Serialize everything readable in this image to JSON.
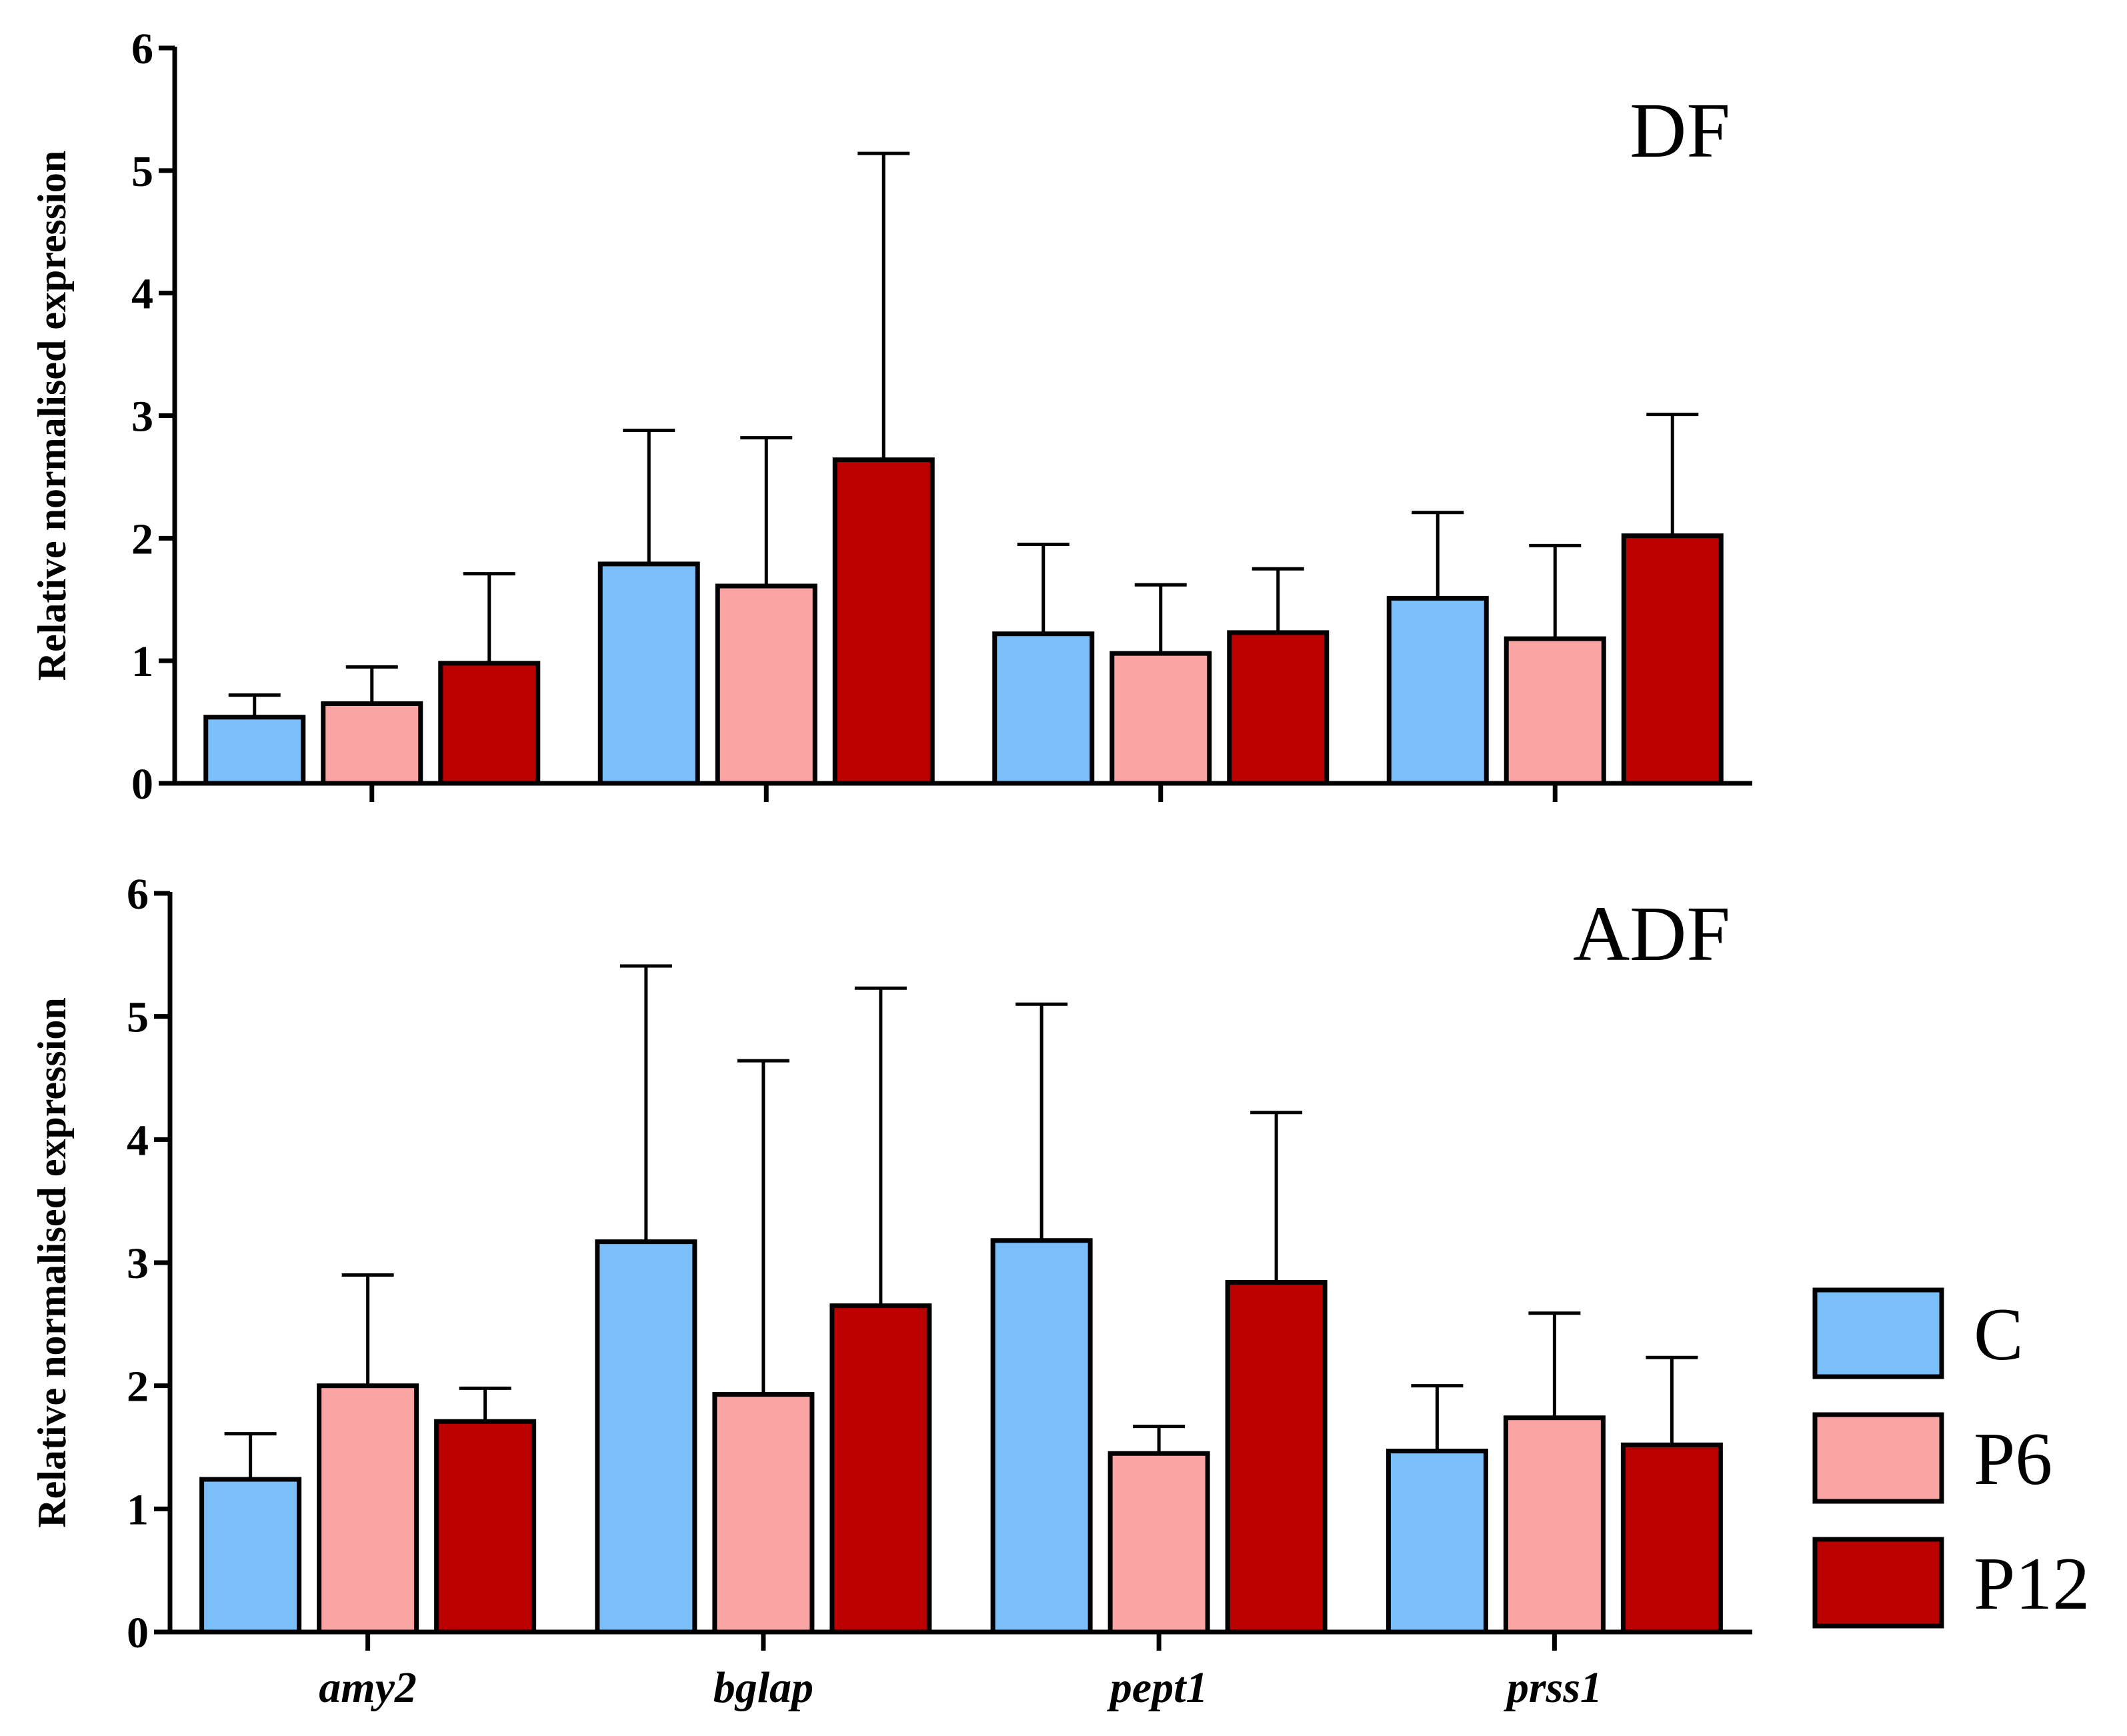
{
  "chart_data": [
    {
      "type": "bar",
      "title": "DF",
      "ylabel": "Relative normalised expression",
      "ylim": [
        0,
        6
      ],
      "yticks": [
        0,
        1,
        2,
        3,
        4,
        5,
        6
      ],
      "categories": [
        "amy2",
        "bglap",
        "pept1",
        "prss1"
      ],
      "show_category_labels": false,
      "series": [
        {
          "name": "C",
          "color": "#7abffa",
          "values": [
            0.54,
            1.79,
            1.22,
            1.51
          ],
          "errors": [
            0.18,
            1.09,
            0.73,
            0.7
          ]
        },
        {
          "name": "P6",
          "color": "#fba4a4",
          "values": [
            0.65,
            1.61,
            1.06,
            1.18
          ],
          "errors": [
            0.3,
            1.21,
            0.56,
            0.76
          ]
        },
        {
          "name": "P12",
          "color": "#bb0000",
          "values": [
            0.98,
            2.64,
            1.23,
            2.02
          ],
          "errors": [
            0.73,
            2.5,
            0.52,
            0.99
          ]
        }
      ]
    },
    {
      "type": "bar",
      "title": "ADF",
      "ylabel": "Relative normalised expression",
      "ylim": [
        0,
        6
      ],
      "yticks": [
        0,
        1,
        2,
        3,
        4,
        5,
        6
      ],
      "categories": [
        "amy2",
        "bglap",
        "pept1",
        "prss1"
      ],
      "show_category_labels": true,
      "series": [
        {
          "name": "C",
          "color": "#7abffa",
          "values": [
            1.24,
            3.17,
            3.18,
            1.47
          ],
          "errors": [
            0.37,
            2.24,
            1.92,
            0.53
          ]
        },
        {
          "name": "P6",
          "color": "#fba4a4",
          "values": [
            2.0,
            1.93,
            1.45,
            1.74
          ],
          "errors": [
            0.9,
            2.71,
            0.22,
            0.85
          ]
        },
        {
          "name": "P12",
          "color": "#bb0000",
          "values": [
            1.71,
            2.65,
            2.84,
            1.52
          ],
          "errors": [
            0.27,
            2.58,
            1.38,
            0.71
          ]
        }
      ]
    }
  ],
  "legend": {
    "placement": "bottom-right",
    "items": [
      {
        "label": "C",
        "color": "#7abffa"
      },
      {
        "label": "P6",
        "color": "#fba4a4"
      },
      {
        "label": "P12",
        "color": "#bb0000"
      }
    ]
  }
}
